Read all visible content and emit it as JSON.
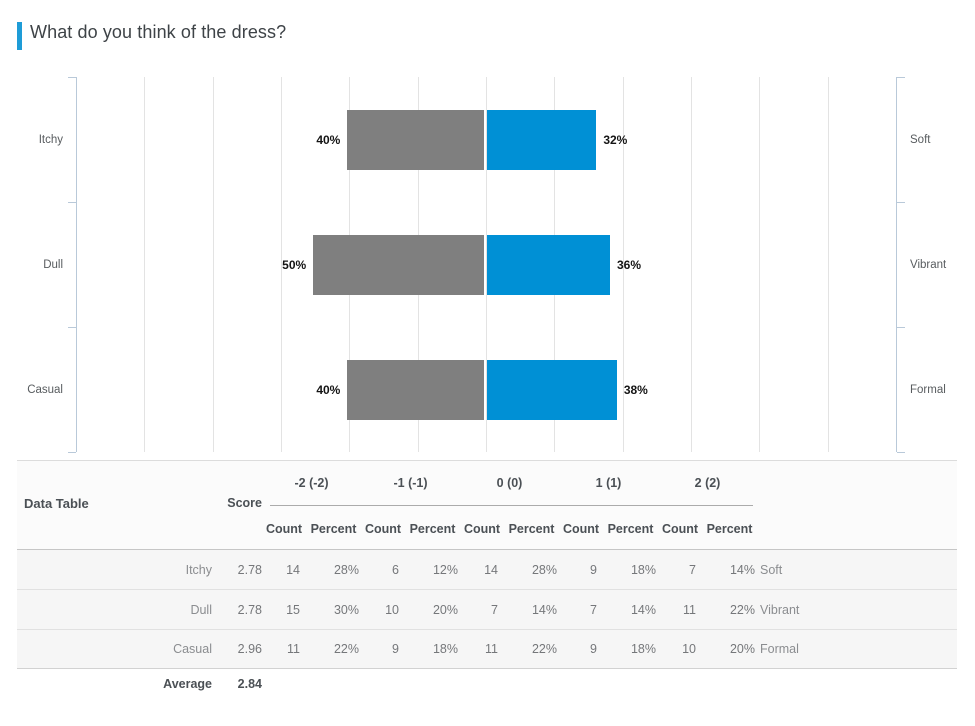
{
  "title": "What do you think of the dress?",
  "accent_color": "#1e9cd7",
  "chart_data": {
    "type": "bar",
    "subtype": "diverging-horizontal",
    "title": "What do you think of the dress?",
    "categories_left": [
      "Itchy",
      "Dull",
      "Casual"
    ],
    "categories_right": [
      "Soft",
      "Vibrant",
      "Formal"
    ],
    "series": [
      {
        "name": "negative (-2/-1)",
        "color": "#7f7f7f",
        "values": [
          40,
          50,
          40
        ]
      },
      {
        "name": "positive (1/2)",
        "color": "#0090d5",
        "values": [
          32,
          36,
          38
        ]
      }
    ],
    "value_label_suffix": "%",
    "axis_half_range_pct": 120,
    "gridline_step_pct": 20,
    "grid": true,
    "legend": "none",
    "gridline_color": "#e3e3e3",
    "axis_color": "#b9c9d9"
  },
  "table": {
    "title": "Data Table",
    "score_header": "Score",
    "group_headers": [
      "-2 (-2)",
      "-1 (-1)",
      "0 (0)",
      "1 (1)",
      "2 (2)"
    ],
    "sub_headers": [
      "Count",
      "Percent"
    ],
    "rows": [
      {
        "label": "Itchy",
        "score": "2.78",
        "cells": [
          [
            "14",
            "28%"
          ],
          [
            "6",
            "12%"
          ],
          [
            "14",
            "28%"
          ],
          [
            "9",
            "18%"
          ],
          [
            "7",
            "14%"
          ]
        ],
        "right_label": "Soft"
      },
      {
        "label": "Dull",
        "score": "2.78",
        "cells": [
          [
            "15",
            "30%"
          ],
          [
            "10",
            "20%"
          ],
          [
            "7",
            "14%"
          ],
          [
            "7",
            "14%"
          ],
          [
            "11",
            "22%"
          ]
        ],
        "right_label": "Vibrant"
      },
      {
        "label": "Casual",
        "score": "2.96",
        "cells": [
          [
            "11",
            "22%"
          ],
          [
            "9",
            "18%"
          ],
          [
            "11",
            "22%"
          ],
          [
            "9",
            "18%"
          ],
          [
            "10",
            "20%"
          ]
        ],
        "right_label": "Formal"
      }
    ],
    "average_label": "Average",
    "average_value": "2.84"
  }
}
